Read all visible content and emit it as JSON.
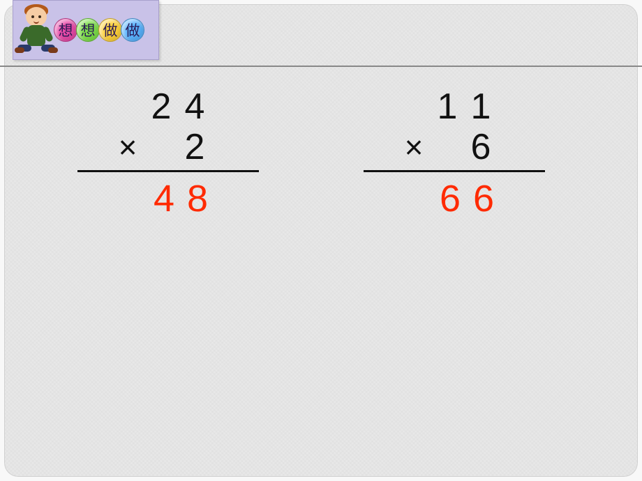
{
  "badge": {
    "chars": [
      "想",
      "想",
      "做",
      "做"
    ],
    "ball_colors": [
      "#e84aa8",
      "#7ee04a",
      "#ffd23a",
      "#5ab4ff"
    ]
  },
  "problems": [
    {
      "multiplicand": [
        "2",
        "4"
      ],
      "multiplier_op": "×",
      "multiplier": "2",
      "result": [
        "4",
        "8"
      ],
      "result_color": "#ff2a00"
    },
    {
      "multiplicand": [
        "1",
        "1"
      ],
      "multiplier_op": "×",
      "multiplier": "6",
      "result": [
        "6",
        "6"
      ],
      "result_color": "#ff2a00"
    }
  ]
}
